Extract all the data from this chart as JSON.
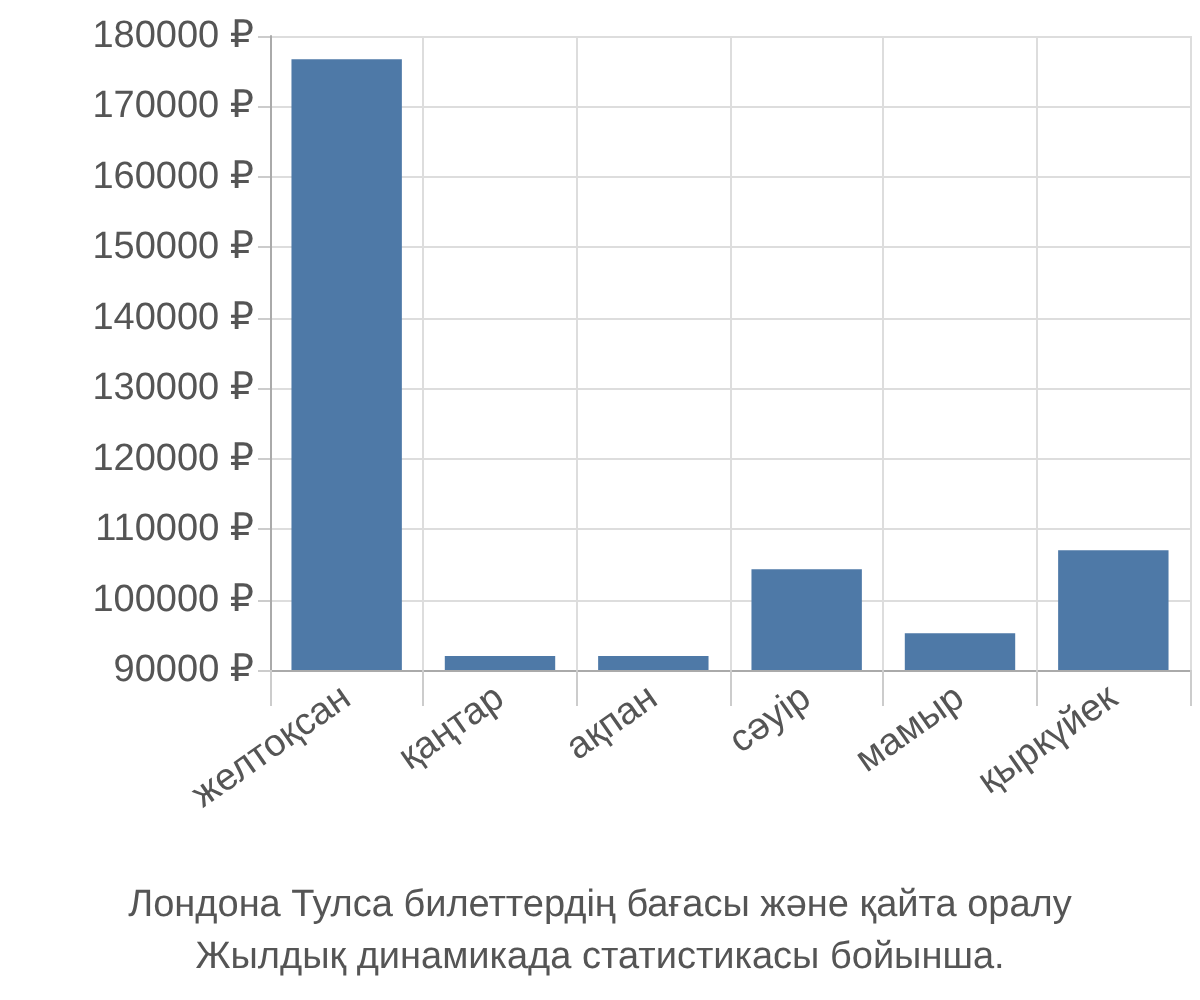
{
  "chart_data": {
    "type": "bar",
    "categories": [
      "желтоқсан",
      "қаңтар",
      "ақпан",
      "сәуір",
      "мамыр",
      "қыркүйек"
    ],
    "values": [
      176700,
      92000,
      92000,
      104300,
      95200,
      107000
    ],
    "color": "#4e79a7",
    "ylim": [
      90000,
      180000
    ],
    "yticks": [
      {
        "value": 90000,
        "label": "90000 ₽"
      },
      {
        "value": 100000,
        "label": "100000 ₽"
      },
      {
        "value": 110000,
        "label": "110000 ₽"
      },
      {
        "value": 120000,
        "label": "120000 ₽"
      },
      {
        "value": 130000,
        "label": "130000 ₽"
      },
      {
        "value": 140000,
        "label": "140000 ₽"
      },
      {
        "value": 150000,
        "label": "150000 ₽"
      },
      {
        "value": 160000,
        "label": "160000 ₽"
      },
      {
        "value": 170000,
        "label": "170000 ₽"
      },
      {
        "value": 180000,
        "label": "180000 ₽"
      }
    ],
    "grid": true,
    "annotations": [
      "Лондона Тулса билеттердің бағасы және қайта оралу",
      "Жылдық динамикада статистикасы бойынша."
    ]
  }
}
